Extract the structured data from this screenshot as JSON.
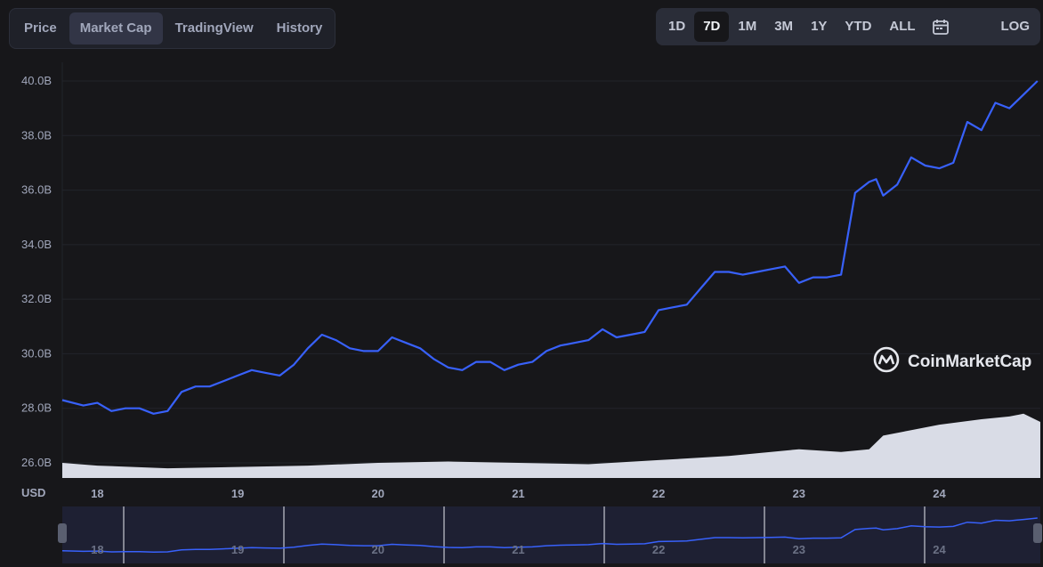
{
  "tabs": [
    {
      "label": "Price",
      "active": false
    },
    {
      "label": "Market Cap",
      "active": true
    },
    {
      "label": "TradingView",
      "active": false
    },
    {
      "label": "History",
      "active": false
    }
  ],
  "ranges": [
    {
      "label": "1D",
      "active": false
    },
    {
      "label": "7D",
      "active": true
    },
    {
      "label": "1M",
      "active": false
    },
    {
      "label": "3M",
      "active": false
    },
    {
      "label": "1Y",
      "active": false
    },
    {
      "label": "YTD",
      "active": false
    },
    {
      "label": "ALL",
      "active": false
    }
  ],
  "calendar_icon": "calendar-icon",
  "log_label": "LOG",
  "watermark": "CoinMarketCap",
  "colors": {
    "line": "#3861fb",
    "volume": "#d9dce6",
    "background": "#17171a",
    "grid": "#22242b",
    "navigator": "#1e2033"
  },
  "chart_data": {
    "type": "line",
    "currency_label": "USD",
    "y_ticks": [
      "26.0B",
      "28.0B",
      "30.0B",
      "32.0B",
      "34.0B",
      "36.0B",
      "38.0B",
      "40.0B"
    ],
    "ylim": [
      26.0,
      40.0
    ],
    "x_ticks": [
      "18",
      "19",
      "20",
      "21",
      "22",
      "23",
      "24"
    ],
    "xlim": [
      17.75,
      24.72
    ],
    "series": [
      {
        "x": [
          17.75,
          17.9,
          18.0,
          18.1,
          18.2,
          18.3,
          18.4,
          18.5,
          18.6,
          18.7,
          18.8,
          18.9,
          19.0,
          19.1,
          19.2,
          19.3,
          19.4,
          19.5,
          19.6,
          19.7,
          19.8,
          19.9,
          20.0,
          20.1,
          20.2,
          20.3,
          20.4,
          20.5,
          20.6,
          20.7,
          20.8,
          20.9,
          21.0,
          21.1,
          21.2,
          21.3,
          21.4,
          21.5,
          21.6,
          21.7,
          21.8,
          21.9,
          22.0,
          22.1,
          22.2,
          22.3,
          22.4,
          22.5,
          22.6,
          22.7,
          22.8,
          22.9,
          23.0,
          23.1,
          23.2,
          23.3,
          23.4,
          23.5,
          23.55,
          23.6,
          23.7,
          23.8,
          23.9,
          24.0,
          24.1,
          24.2,
          24.3,
          24.4,
          24.5,
          24.6,
          24.7
        ],
        "values": [
          28.3,
          28.1,
          28.2,
          27.9,
          28.0,
          28.0,
          27.8,
          27.9,
          28.6,
          28.8,
          28.8,
          29.0,
          29.2,
          29.4,
          29.3,
          29.2,
          29.6,
          30.2,
          30.7,
          30.5,
          30.2,
          30.1,
          30.1,
          30.6,
          30.4,
          30.2,
          29.8,
          29.5,
          29.4,
          29.7,
          29.7,
          29.4,
          29.6,
          29.7,
          30.1,
          30.3,
          30.4,
          30.5,
          30.9,
          30.6,
          30.7,
          30.8,
          31.6,
          31.7,
          31.8,
          32.4,
          33.0,
          33.0,
          32.9,
          33.0,
          33.1,
          33.2,
          32.6,
          32.8,
          32.8,
          32.9,
          35.9,
          36.3,
          36.4,
          35.8,
          36.2,
          37.2,
          36.9,
          36.8,
          37.0,
          38.5,
          38.2,
          39.2,
          39.0,
          39.5,
          40.0
        ]
      }
    ],
    "volume": {
      "x": [
        17.75,
        18.0,
        18.5,
        19.0,
        19.5,
        20.0,
        20.5,
        21.0,
        21.5,
        22.0,
        22.5,
        23.0,
        23.3,
        23.5,
        23.6,
        23.8,
        24.0,
        24.3,
        24.5,
        24.6,
        24.72
      ],
      "values": [
        26.0,
        25.9,
        25.8,
        25.85,
        25.9,
        26.0,
        26.05,
        26.0,
        25.95,
        26.1,
        26.25,
        26.5,
        26.4,
        26.5,
        27.0,
        27.2,
        27.4,
        27.6,
        27.7,
        27.8,
        27.5
      ]
    },
    "grid": true,
    "legend": "none"
  }
}
